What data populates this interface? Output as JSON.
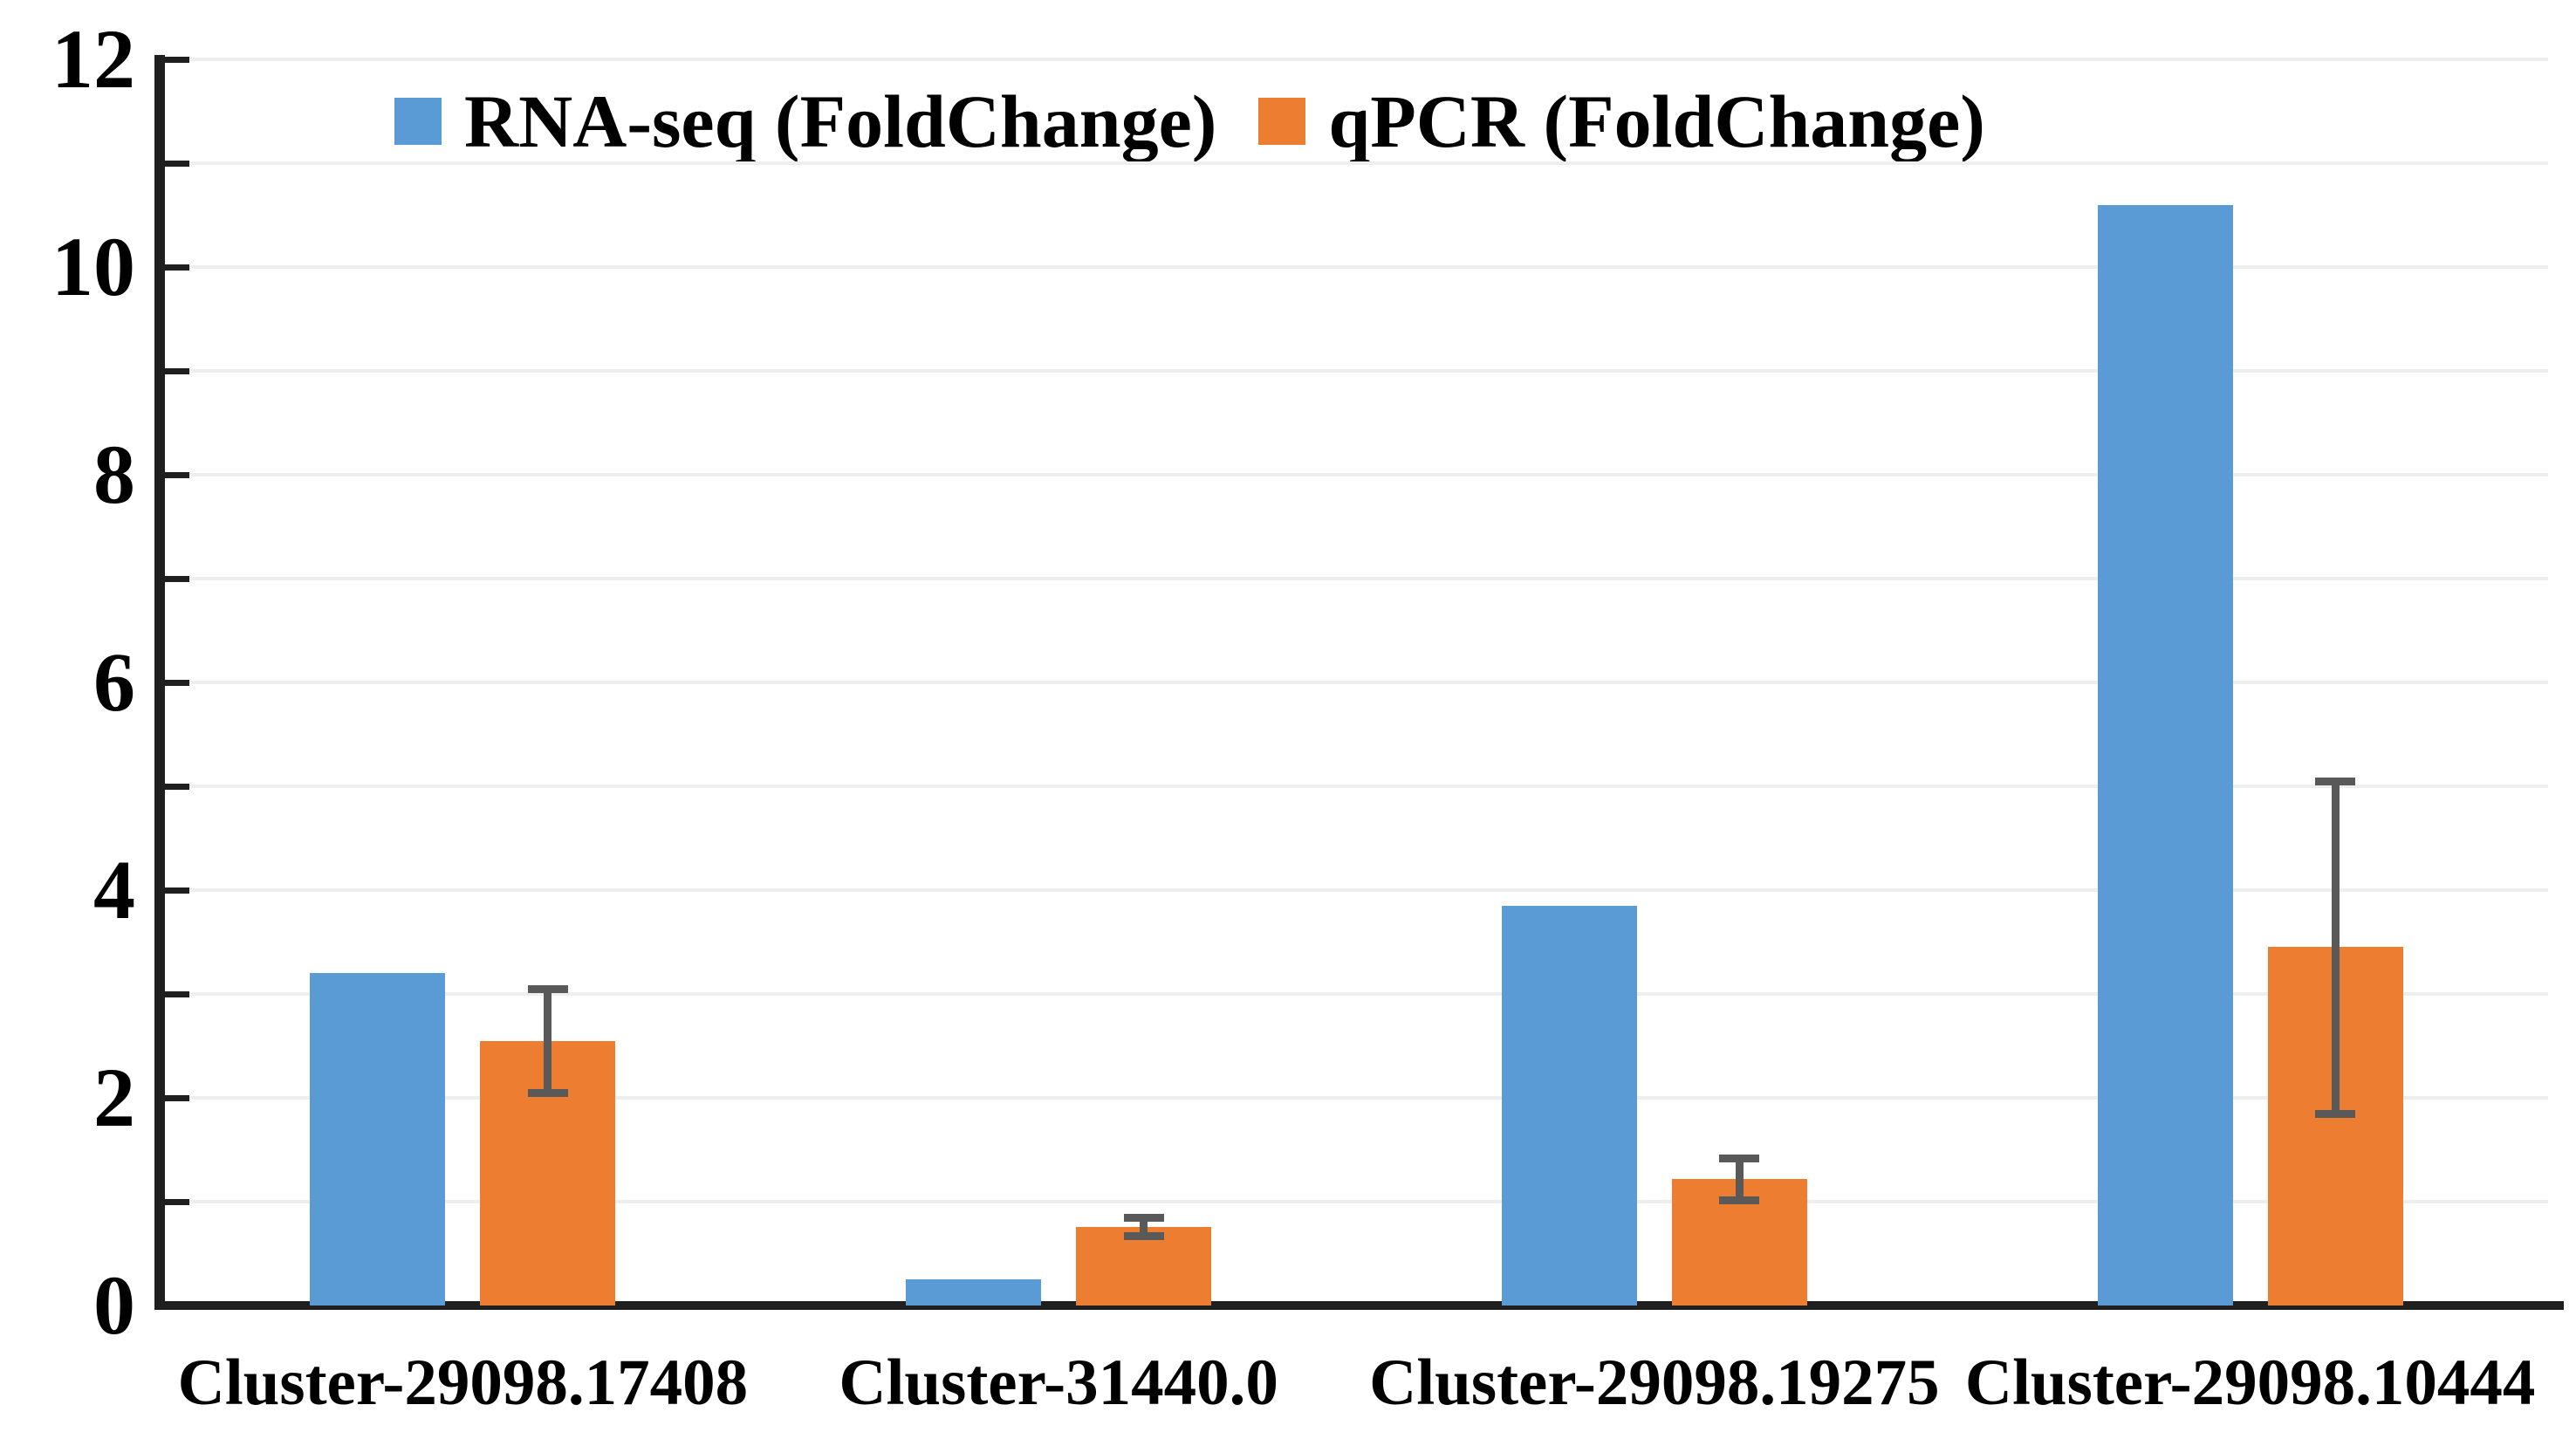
{
  "chart_data": {
    "type": "bar",
    "title": "",
    "categories": [
      "Cluster-29098.17408",
      "Cluster-31440.0",
      "Cluster-29098.19275",
      "Cluster-29098.10444"
    ],
    "series": [
      {
        "name": "RNA-seq (FoldChange)",
        "color": "#5B9BD5",
        "values": [
          3.2,
          0.25,
          3.85,
          10.6
        ]
      },
      {
        "name": "qPCR (FoldChange)",
        "color": "#ED7D31",
        "values": [
          2.55,
          0.76,
          1.22,
          3.45
        ],
        "errors": [
          0.5,
          0.09,
          0.2,
          1.6
        ]
      }
    ],
    "ylim": [
      0,
      12
    ],
    "y_major_tick_labels": [
      "0",
      "2",
      "4",
      "6",
      "8",
      "10",
      "12"
    ],
    "y_minor_tick_step": 1,
    "grid": "horizontal-every-unit",
    "legend_position": "top-left",
    "error_bar_color": "#595959",
    "axis_color": "#1f1f1f",
    "gridline_color": "#eeeeee",
    "background_color": "#ffffff"
  }
}
